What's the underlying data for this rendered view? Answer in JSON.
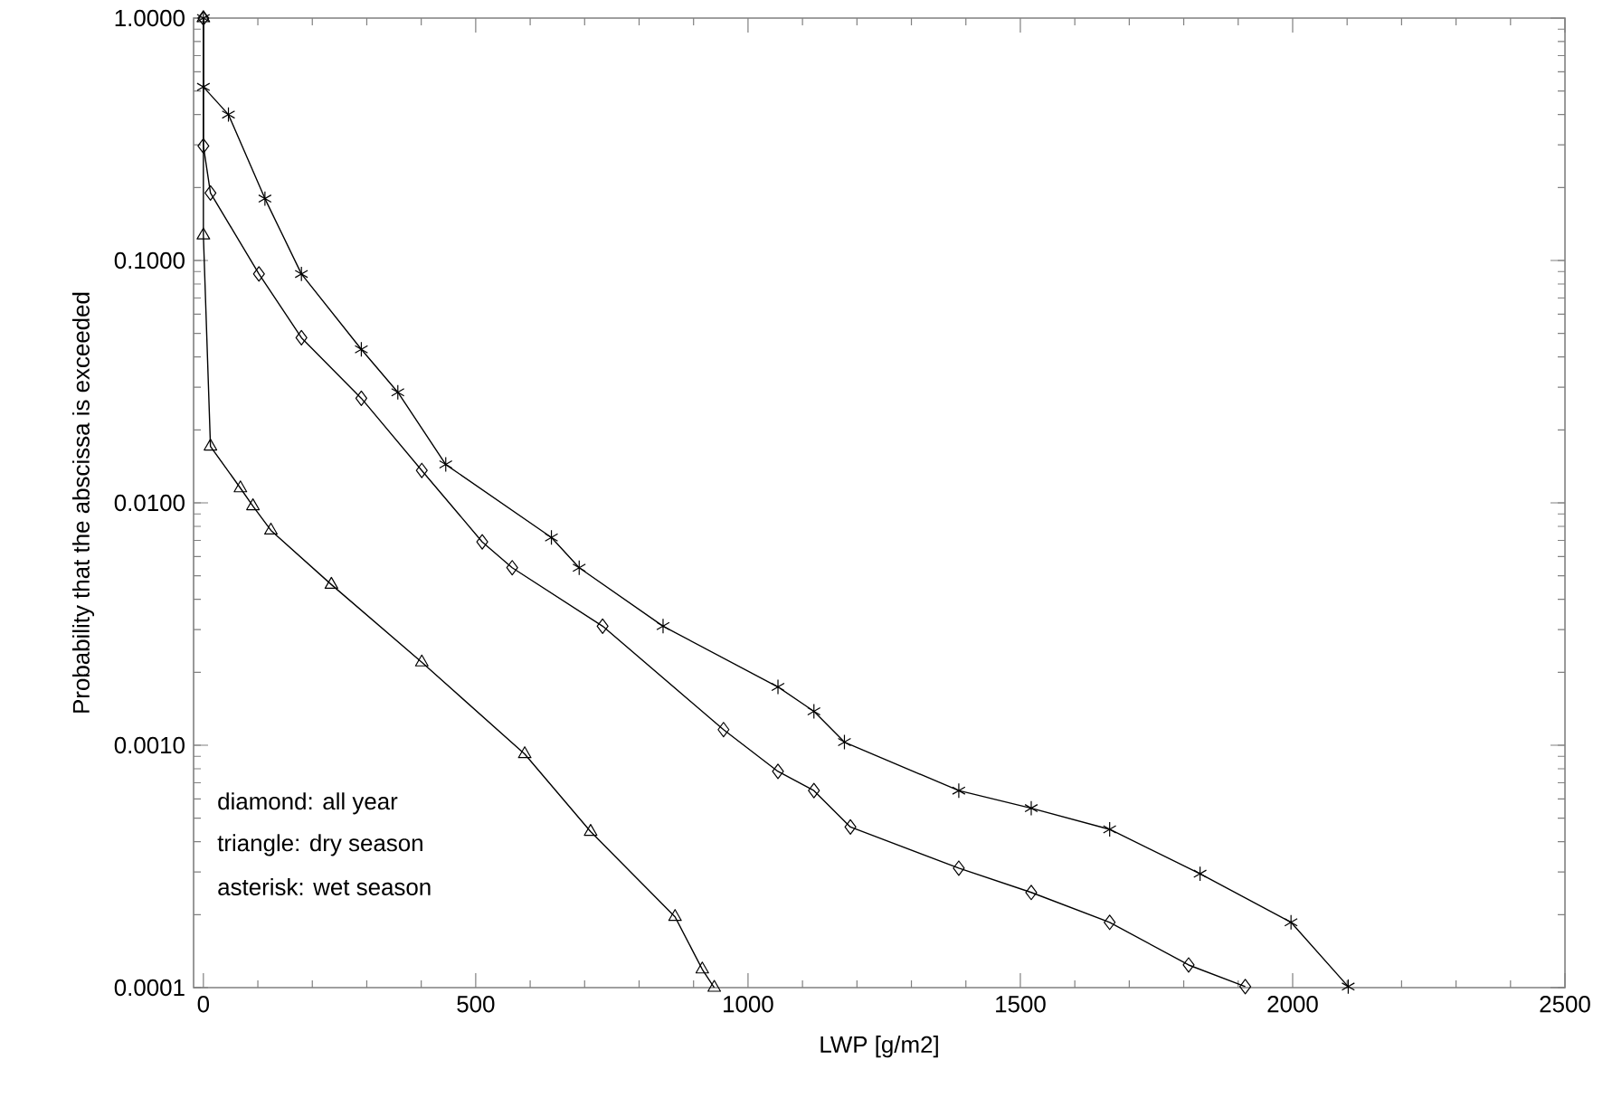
{
  "chart_data": {
    "type": "line",
    "xlabel": "LWP [g/m2]",
    "ylabel": "Probability that the abscissa is exceeded",
    "log": "y",
    "xlim": [
      -18,
      2500
    ],
    "xticks": [
      0,
      500,
      1000,
      1500,
      2000,
      2500
    ],
    "ylim": [
      0.0001,
      1
    ],
    "yticks": [
      {
        "value": 0.0001,
        "label": "0.0001"
      },
      {
        "value": 0.001,
        "label": "0.0010"
      },
      {
        "value": 0.01,
        "label": "0.0100"
      },
      {
        "value": 0.1,
        "label": "0.1000"
      },
      {
        "value": 1,
        "label": "1.0000"
      }
    ],
    "grid": false,
    "line_style": "solid",
    "annotations": [
      "diamond: all year",
      "triangle: dry season",
      "asterisk: wet season"
    ],
    "series": [
      {
        "color": "#000000",
        "marker": "diamond",
        "x": [
          0,
          0,
          13,
          102,
          180,
          290,
          401,
          512,
          567,
          733,
          955,
          1055,
          1121,
          1188,
          1387,
          1520,
          1664,
          1809,
          1913
        ],
        "values": [
          1,
          0.297,
          0.19,
          0.088,
          0.048,
          0.027,
          0.0136,
          0.0069,
          0.0054,
          0.0031,
          0.00116,
          0.00078,
          0.00065,
          0.00046,
          0.000311,
          0.000247,
          0.000186,
          0.000124,
          0.000101
        ]
      },
      {
        "color": "#000000",
        "marker": "triangle",
        "x": [
          0,
          0,
          13,
          68,
          91,
          124,
          235,
          401,
          590,
          711,
          866,
          916,
          938
        ],
        "values": [
          1,
          0.127,
          0.0171,
          0.0115,
          0.0097,
          0.0077,
          0.0046,
          0.0022,
          0.00092,
          0.00044,
          0.000196,
          0.000119,
          0.0001
        ]
      },
      {
        "color": "#000000",
        "marker": "cross",
        "x": [
          0,
          0,
          46,
          113,
          180,
          290,
          357,
          445,
          639,
          690,
          844,
          1055,
          1121,
          1177,
          1387,
          1520,
          1664,
          1830,
          1997,
          2102
        ],
        "values": [
          1,
          0.52,
          0.4,
          0.18,
          0.088,
          0.043,
          0.0286,
          0.0144,
          0.0072,
          0.0054,
          0.0031,
          0.00174,
          0.00138,
          0.00103,
          0.00065,
          0.00055,
          0.00045,
          0.000295,
          0.000186,
          0.000101
        ]
      }
    ]
  }
}
